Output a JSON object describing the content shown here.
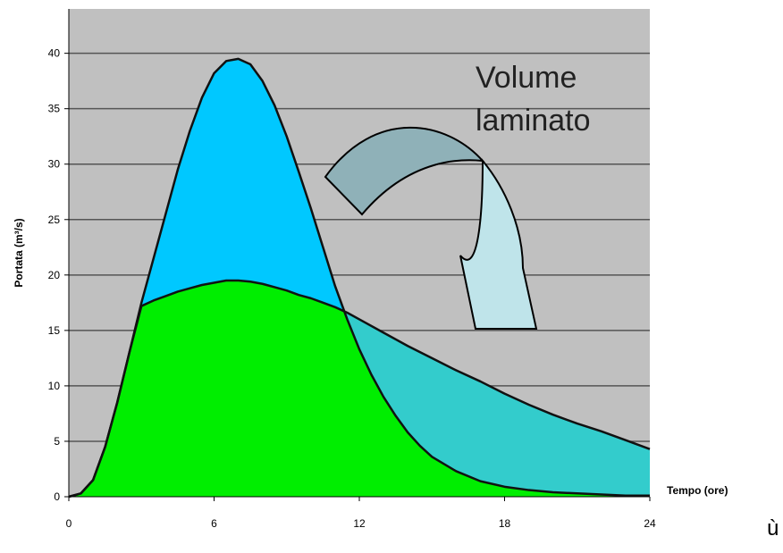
{
  "chart_data": {
    "type": "area",
    "x_unit": "ore",
    "xlabel": "Tempo (ore)",
    "ylabel": "Portata (m³/s)",
    "xlim": [
      0,
      24
    ],
    "ylim": [
      0,
      44
    ],
    "x_ticks": [
      0,
      6,
      12,
      18,
      24
    ],
    "y_ticks": [
      0,
      5,
      10,
      15,
      20,
      25,
      30,
      35,
      40
    ],
    "grid": true,
    "annotation": [
      "Volume",
      "laminato"
    ],
    "series": [
      {
        "role": "inflow",
        "color": "#00c8ff",
        "x": [
          0,
          0.5,
          1,
          1.5,
          2,
          2.5,
          3,
          3.5,
          4,
          4.5,
          5,
          5.5,
          6,
          6.5,
          7,
          7.5,
          8,
          8.5,
          9,
          9.5,
          10,
          10.5,
          11,
          11.5,
          12,
          12.5,
          13,
          13.5,
          14,
          14.5,
          15,
          16,
          17,
          18,
          19,
          20,
          21,
          22,
          23,
          24
        ],
        "values": [
          0,
          0.3,
          1.5,
          4.5,
          8.5,
          13,
          17.5,
          21.5,
          25.5,
          29.5,
          33,
          36,
          38.2,
          39.3,
          39.5,
          39,
          37.5,
          35.3,
          32.5,
          29.3,
          26,
          22.5,
          19,
          16,
          13.3,
          11,
          9,
          7.3,
          5.8,
          4.6,
          3.6,
          2.3,
          1.4,
          0.9,
          0.6,
          0.4,
          0.3,
          0.2,
          0.1,
          0.1
        ]
      },
      {
        "role": "outflow",
        "color": "#00ee00",
        "x": [
          0,
          0.5,
          1,
          1.5,
          2,
          2.5,
          3,
          3.5,
          4,
          4.5,
          5,
          5.5,
          6,
          6.5,
          7,
          7.5,
          8,
          8.5,
          9,
          9.5,
          10,
          10.5,
          11,
          11.5,
          12,
          13,
          14,
          15,
          16,
          17,
          18,
          19,
          20,
          21,
          22,
          23,
          24
        ],
        "values": [
          0,
          0.3,
          1.5,
          4.5,
          8.5,
          13,
          17.2,
          17.7,
          18.1,
          18.5,
          18.8,
          19.1,
          19.3,
          19.5,
          19.5,
          19.4,
          19.2,
          18.9,
          18.6,
          18.2,
          17.9,
          17.5,
          17.1,
          16.6,
          16,
          14.8,
          13.6,
          12.5,
          11.4,
          10.4,
          9.3,
          8.3,
          7.4,
          6.6,
          5.9,
          5.1,
          4.3
        ]
      }
    ]
  },
  "stray_text": "ù"
}
